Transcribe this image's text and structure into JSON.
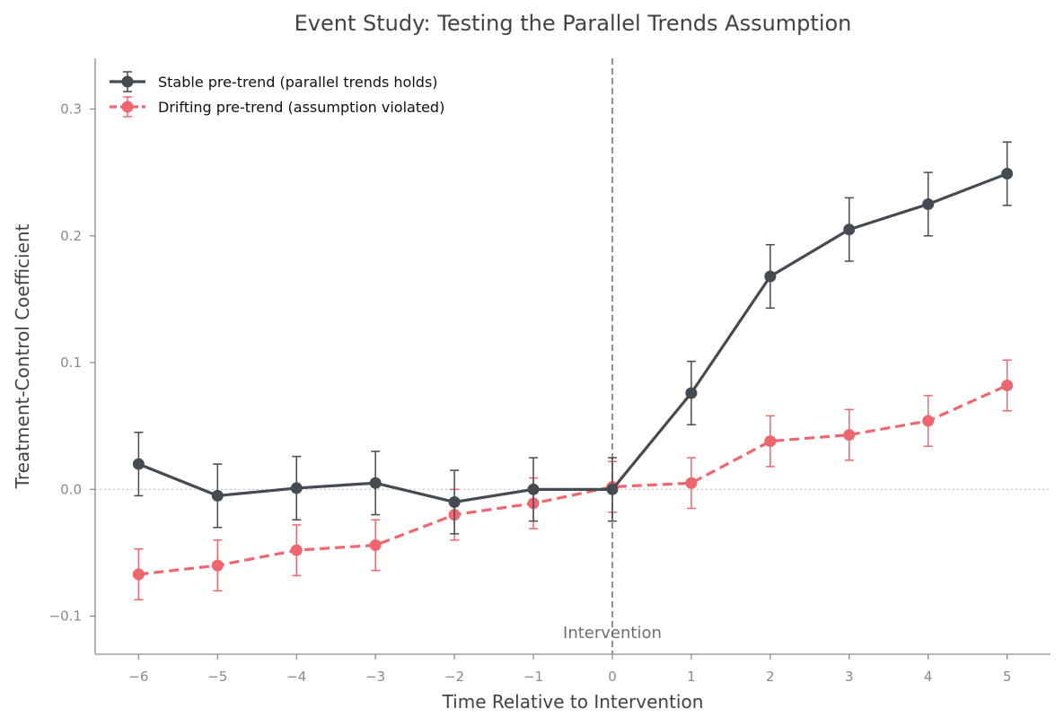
{
  "chart_data": {
    "type": "line",
    "title": "Event Study: Testing the Parallel Trends Assumption",
    "xlabel": "Time Relative to Intervention",
    "ylabel": "Treatment-Control Coefficient",
    "x": [
      -6,
      -5,
      -4,
      -3,
      -2,
      -1,
      0,
      1,
      2,
      3,
      4,
      5
    ],
    "x_tick_labels": [
      "−6",
      "−5",
      "−4",
      "−3",
      "−2",
      "−1",
      "0",
      "1",
      "2",
      "3",
      "4",
      "5"
    ],
    "xlim": [
      -6.55,
      5.55
    ],
    "ylim": [
      -0.13,
      0.34
    ],
    "y_ticks": [
      -0.1,
      0.0,
      0.1,
      0.2,
      0.3
    ],
    "y_tick_labels": [
      "−0.1",
      "0.0",
      "0.1",
      "0.2",
      "0.3"
    ],
    "series": [
      {
        "name": "Stable pre-trend (parallel trends holds)",
        "color": "#454b52",
        "line_style": "solid",
        "values": [
          0.02,
          -0.005,
          0.001,
          0.005,
          -0.01,
          0.0,
          0.0,
          0.076,
          0.168,
          0.205,
          0.225,
          0.249
        ],
        "error": 0.025
      },
      {
        "name": "Drifting pre-trend (assumption violated)",
        "color": "#f0666e",
        "line_style": "dashed",
        "values": [
          -0.067,
          -0.06,
          -0.048,
          -0.044,
          -0.02,
          -0.011,
          0.002,
          0.005,
          0.038,
          0.043,
          0.054,
          0.082
        ],
        "error": 0.02
      }
    ],
    "reference_lines": [
      {
        "axis": "y",
        "value": 0.0,
        "style": "dotted",
        "color": "#c8c8c8"
      },
      {
        "axis": "x",
        "value": 0,
        "style": "dashed",
        "color": "#8f8f8f"
      }
    ],
    "annotations": [
      {
        "text": "Intervention",
        "x": 0,
        "y": -0.113
      }
    ],
    "grid": false,
    "legend_position": "top-left"
  }
}
